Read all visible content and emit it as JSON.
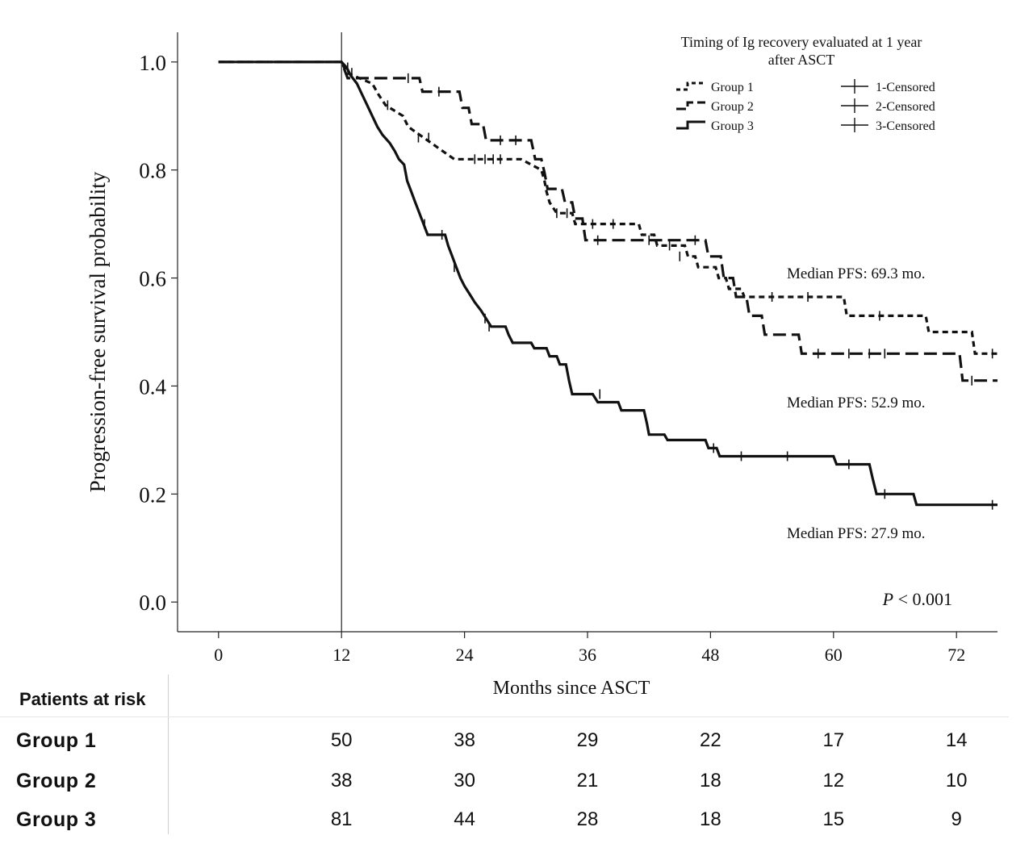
{
  "chart_data": {
    "type": "line",
    "subtype": "kaplan-meier",
    "xlabel": "Months since ASCT",
    "ylabel": "Progression-free survival probability",
    "xlim": [
      -4,
      76
    ],
    "ylim": [
      -0.055,
      1.055
    ],
    "xticks": [
      0,
      12,
      24,
      36,
      48,
      60,
      72
    ],
    "xtick_labels": [
      "0",
      "12",
      "24",
      "36",
      "48",
      "60",
      "72"
    ],
    "yticks": [
      0,
      0.2,
      0.4,
      0.6,
      0.8,
      1.0
    ],
    "ytick_labels": [
      "0.0",
      "0.2",
      "0.4",
      "0.6",
      "0.8",
      "1.0"
    ],
    "landmark_x": 12,
    "legend": {
      "title_line1": "Timing of Ig recovery evaluated at 1 year",
      "title_line2": "after ASCT",
      "position": "top-right",
      "entries": [
        "Group 1",
        "Group 2",
        "Group 3"
      ],
      "censor_entries": [
        "1-Censored",
        "2-Censored",
        "3-Censored"
      ]
    },
    "annotations": {
      "median_group1": "Median PFS: 69.3 mo.",
      "median_group2": "Median PFS: 52.9 mo.",
      "median_group3": "Median PFS: 27.9 mo.",
      "p_label": "P",
      "p_value": " < 0.001"
    },
    "series": [
      {
        "name": "Group 1",
        "style": "short-dash",
        "points": [
          [
            0,
            1.0
          ],
          [
            12,
            1.0
          ],
          [
            12.5,
            0.98
          ],
          [
            15.0,
            0.96
          ],
          [
            15.6,
            0.94
          ],
          [
            16.3,
            0.92
          ],
          [
            18.0,
            0.9
          ],
          [
            18.5,
            0.88
          ],
          [
            20.0,
            0.86
          ],
          [
            21.5,
            0.84
          ],
          [
            23.0,
            0.82
          ],
          [
            29.5,
            0.82
          ],
          [
            31.5,
            0.8
          ],
          [
            31.8,
            0.78
          ],
          [
            32.0,
            0.76
          ],
          [
            32.3,
            0.74
          ],
          [
            33.0,
            0.72
          ],
          [
            34.5,
            0.72
          ],
          [
            34.8,
            0.7
          ],
          [
            41.0,
            0.7
          ],
          [
            41.3,
            0.68
          ],
          [
            42.5,
            0.68
          ],
          [
            42.8,
            0.66
          ],
          [
            45.5,
            0.66
          ],
          [
            45.8,
            0.64
          ],
          [
            46.5,
            0.64
          ],
          [
            46.8,
            0.62
          ],
          [
            48.5,
            0.62
          ],
          [
            48.8,
            0.6
          ],
          [
            49.5,
            0.6
          ],
          [
            49.8,
            0.58
          ],
          [
            51.0,
            0.58
          ],
          [
            51.3,
            0.565
          ],
          [
            61.0,
            0.565
          ],
          [
            61.3,
            0.53
          ],
          [
            69.0,
            0.53
          ],
          [
            69.3,
            0.5
          ],
          [
            73.5,
            0.5
          ],
          [
            73.8,
            0.46
          ],
          [
            76,
            0.46
          ]
        ],
        "censored": [
          [
            13.0,
            0.98
          ],
          [
            16.5,
            0.92
          ],
          [
            19.5,
            0.86
          ],
          [
            20.5,
            0.86
          ],
          [
            25.0,
            0.82
          ],
          [
            26.0,
            0.82
          ],
          [
            26.8,
            0.82
          ],
          [
            27.5,
            0.82
          ],
          [
            33.0,
            0.72
          ],
          [
            34.0,
            0.72
          ],
          [
            36.5,
            0.7
          ],
          [
            38.5,
            0.7
          ],
          [
            44.0,
            0.66
          ],
          [
            45.0,
            0.64
          ],
          [
            54.0,
            0.565
          ],
          [
            57.5,
            0.565
          ],
          [
            64.5,
            0.53
          ],
          [
            75.5,
            0.46
          ]
        ]
      },
      {
        "name": "Group 2",
        "style": "long-dash",
        "points": [
          [
            0,
            1.0
          ],
          [
            12,
            1.0
          ],
          [
            12.6,
            0.97
          ],
          [
            19.6,
            0.97
          ],
          [
            19.9,
            0.945
          ],
          [
            23.5,
            0.945
          ],
          [
            23.8,
            0.915
          ],
          [
            24.4,
            0.915
          ],
          [
            24.7,
            0.885
          ],
          [
            25.8,
            0.885
          ],
          [
            26.1,
            0.855
          ],
          [
            30.5,
            0.855
          ],
          [
            30.9,
            0.82
          ],
          [
            31.5,
            0.82
          ],
          [
            31.8,
            0.795
          ],
          [
            32.1,
            0.765
          ],
          [
            33.5,
            0.765
          ],
          [
            33.8,
            0.74
          ],
          [
            34.5,
            0.74
          ],
          [
            34.8,
            0.71
          ],
          [
            35.5,
            0.71
          ],
          [
            35.8,
            0.67
          ],
          [
            47.5,
            0.67
          ],
          [
            47.8,
            0.64
          ],
          [
            49.0,
            0.64
          ],
          [
            49.3,
            0.6
          ],
          [
            50.2,
            0.6
          ],
          [
            50.5,
            0.565
          ],
          [
            51.5,
            0.565
          ],
          [
            51.8,
            0.53
          ],
          [
            53.0,
            0.53
          ],
          [
            53.3,
            0.495
          ],
          [
            56.6,
            0.495
          ],
          [
            56.9,
            0.46
          ],
          [
            72.3,
            0.46
          ],
          [
            72.6,
            0.41
          ],
          [
            76,
            0.41
          ]
        ],
        "censored": [
          [
            18.5,
            0.97
          ],
          [
            21.5,
            0.945
          ],
          [
            27.5,
            0.855
          ],
          [
            29.0,
            0.855
          ],
          [
            37.0,
            0.67
          ],
          [
            42.0,
            0.67
          ],
          [
            46.5,
            0.67
          ],
          [
            58.5,
            0.46
          ],
          [
            61.5,
            0.46
          ],
          [
            63.5,
            0.46
          ],
          [
            65.0,
            0.46
          ],
          [
            73.5,
            0.41
          ]
        ]
      },
      {
        "name": "Group 3",
        "style": "solid",
        "points": [
          [
            0,
            1.0
          ],
          [
            12,
            1.0
          ],
          [
            12.5,
            0.99
          ],
          [
            12.9,
            0.975
          ],
          [
            13.5,
            0.96
          ],
          [
            14.0,
            0.94
          ],
          [
            14.5,
            0.92
          ],
          [
            15.0,
            0.9
          ],
          [
            15.5,
            0.88
          ],
          [
            16.0,
            0.865
          ],
          [
            16.7,
            0.85
          ],
          [
            17.2,
            0.835
          ],
          [
            17.6,
            0.82
          ],
          [
            18.1,
            0.81
          ],
          [
            18.4,
            0.78
          ],
          [
            18.8,
            0.76
          ],
          [
            19.2,
            0.74
          ],
          [
            19.6,
            0.72
          ],
          [
            20.0,
            0.7
          ],
          [
            20.4,
            0.68
          ],
          [
            22.1,
            0.68
          ],
          [
            22.4,
            0.66
          ],
          [
            22.8,
            0.64
          ],
          [
            23.2,
            0.62
          ],
          [
            23.6,
            0.6
          ],
          [
            24.0,
            0.585
          ],
          [
            24.5,
            0.57
          ],
          [
            25.0,
            0.555
          ],
          [
            25.6,
            0.54
          ],
          [
            26.1,
            0.525
          ],
          [
            26.6,
            0.51
          ],
          [
            28.0,
            0.51
          ],
          [
            28.3,
            0.495
          ],
          [
            28.7,
            0.48
          ],
          [
            30.5,
            0.48
          ],
          [
            30.8,
            0.47
          ],
          [
            32.0,
            0.47
          ],
          [
            32.3,
            0.455
          ],
          [
            33.0,
            0.455
          ],
          [
            33.3,
            0.44
          ],
          [
            33.9,
            0.44
          ],
          [
            34.2,
            0.41
          ],
          [
            34.5,
            0.385
          ],
          [
            36.5,
            0.385
          ],
          [
            37.0,
            0.37
          ],
          [
            39.0,
            0.37
          ],
          [
            39.3,
            0.355
          ],
          [
            41.5,
            0.355
          ],
          [
            41.8,
            0.33
          ],
          [
            42.0,
            0.31
          ],
          [
            43.5,
            0.31
          ],
          [
            43.8,
            0.3
          ],
          [
            47.5,
            0.3
          ],
          [
            47.8,
            0.285
          ],
          [
            48.6,
            0.285
          ],
          [
            48.9,
            0.27
          ],
          [
            60.0,
            0.27
          ],
          [
            60.3,
            0.255
          ],
          [
            63.5,
            0.255
          ],
          [
            63.8,
            0.23
          ],
          [
            64.2,
            0.2
          ],
          [
            67.8,
            0.2
          ],
          [
            68.1,
            0.18
          ],
          [
            76,
            0.18
          ]
        ],
        "censored": [
          [
            12.6,
            0.99
          ],
          [
            20.1,
            0.7
          ],
          [
            21.8,
            0.68
          ],
          [
            23.0,
            0.62
          ],
          [
            26.0,
            0.525
          ],
          [
            26.4,
            0.51
          ],
          [
            37.2,
            0.385
          ],
          [
            48.3,
            0.285
          ],
          [
            51.0,
            0.27
          ],
          [
            55.5,
            0.27
          ],
          [
            61.5,
            0.255
          ],
          [
            65.0,
            0.2
          ],
          [
            75.5,
            0.18
          ]
        ]
      }
    ]
  },
  "risk_table": {
    "title": "Patients at risk",
    "times": [
      12,
      24,
      36,
      48,
      60,
      72
    ],
    "rows": [
      {
        "label": "Group  1",
        "values": [
          "50",
          "38",
          "29",
          "22",
          "17",
          "14"
        ]
      },
      {
        "label": "Group  2",
        "values": [
          "38",
          "30",
          "21",
          "18",
          "12",
          "10"
        ]
      },
      {
        "label": "Group  3",
        "values": [
          "81",
          "44",
          "28",
          "18",
          "15",
          "9"
        ]
      }
    ]
  }
}
